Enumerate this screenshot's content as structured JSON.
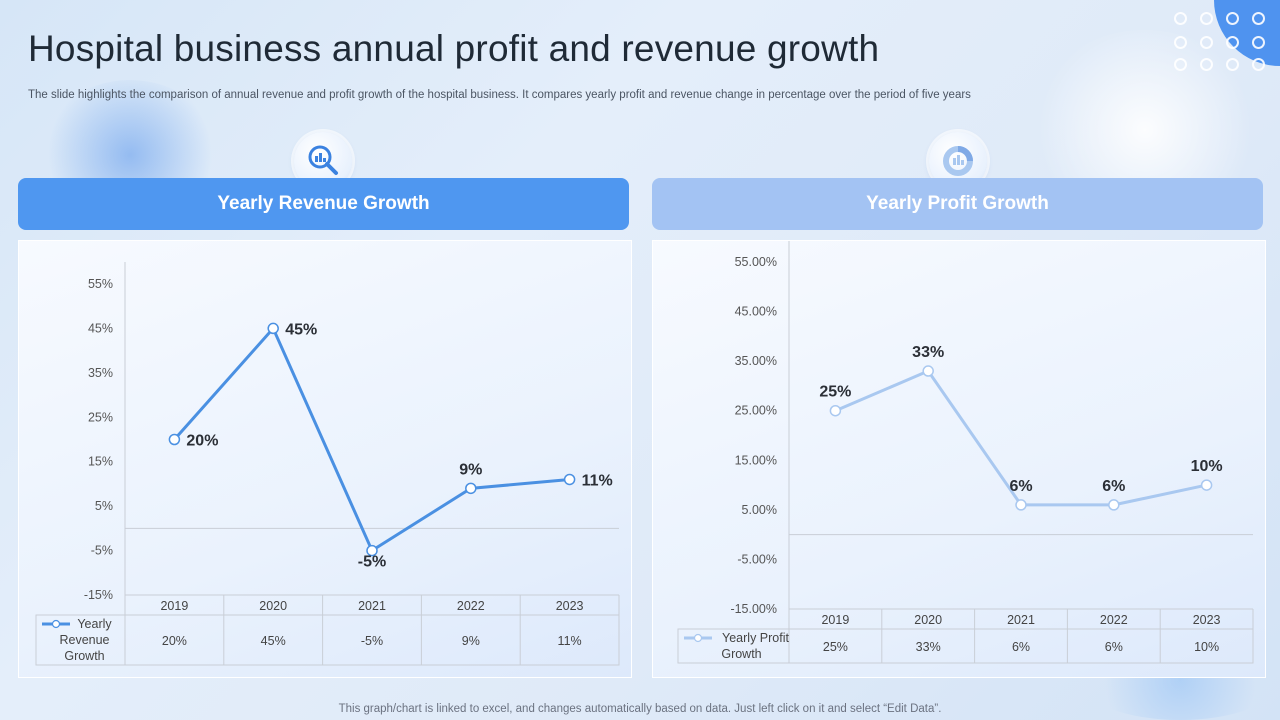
{
  "page": {
    "title": "Hospital business annual profit and revenue growth",
    "subtitle": "The slide highlights the comparison of annual revenue and profit growth of the hospital business. It compares yearly profit and revenue change in percentage over the period of five years",
    "footer": "This graph/chart is linked to excel,  and changes automatically based on data. Just left click on it and select “Edit Data”."
  },
  "icons": {
    "left": "search-analytics-icon",
    "right": "donut-chart-icon"
  },
  "colors": {
    "accent": "#4f97f0",
    "accent_light": "#a3c3f3",
    "revenue_line": "#4a90e2",
    "profit_line": "#a9c8f0"
  },
  "chart_data": [
    {
      "type": "line",
      "title": "Yearly Revenue Growth",
      "categories": [
        "2019",
        "2020",
        "2021",
        "2022",
        "2023"
      ],
      "series": [
        {
          "name": "Yearly Revenue Growth",
          "values": [
            20,
            45,
            -5,
            9,
            11
          ]
        }
      ],
      "data_labels": [
        "20%",
        "45%",
        "-5%",
        "9%",
        "11%"
      ],
      "y_ticks": [
        -15,
        -5,
        5,
        15,
        25,
        35,
        45,
        55
      ],
      "y_tick_labels": [
        "-15%",
        "-5%",
        "5%",
        "15%",
        "25%",
        "35%",
        "45%",
        "55%"
      ],
      "ylim": [
        -15,
        55
      ],
      "table_row": [
        "20%",
        "45%",
        "-5%",
        "9%",
        "11%"
      ],
      "legend": "data-table"
    },
    {
      "type": "line",
      "title": "Yearly Profit Growth",
      "categories": [
        "2019",
        "2020",
        "2021",
        "2022",
        "2023"
      ],
      "series": [
        {
          "name": "Yearly Profit Growth",
          "values": [
            25,
            33,
            6,
            6,
            10
          ]
        }
      ],
      "data_labels": [
        "25%",
        "33%",
        "6%",
        "6%",
        "10%"
      ],
      "y_ticks": [
        -15,
        -5,
        5,
        15,
        25,
        35,
        45,
        55
      ],
      "y_tick_labels": [
        "-15.00%",
        "-5.00%",
        "5.00%",
        "15.00%",
        "25.00%",
        "35.00%",
        "45.00%",
        "55.00%"
      ],
      "ylim": [
        -15,
        55
      ],
      "table_row": [
        "25%",
        "33%",
        "6%",
        "6%",
        "10%"
      ],
      "legend": "data-table"
    }
  ]
}
